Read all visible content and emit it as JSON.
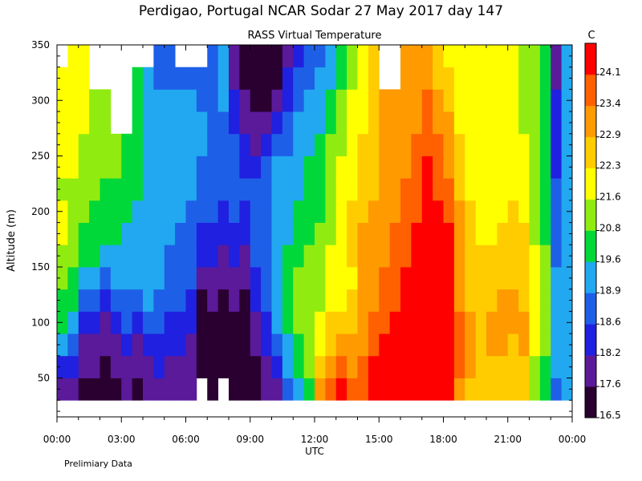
{
  "chart_data": {
    "type": "heatmap",
    "title": "Perdigao, Portugal  NCAR Sodar  27 May 2017  day 147",
    "subtitle": "RASS Virtual Temperature",
    "xlabel": "UTC",
    "ylabel": "Altitude (m)",
    "note": "Prelimiary Data",
    "x_ticks": [
      "00:00",
      "03:00",
      "06:00",
      "09:00",
      "12:00",
      "15:00",
      "18:00",
      "21:00",
      "00:00"
    ],
    "x_tick_hours": [
      0,
      3,
      6,
      9,
      12,
      15,
      18,
      21,
      24
    ],
    "xlim_hours": [
      0,
      24
    ],
    "y_ticks": [
      50,
      100,
      150,
      200,
      250,
      300,
      350
    ],
    "ylim": [
      15,
      350
    ],
    "colorbar": {
      "unit": "C",
      "levels": [
        16.5,
        17.6,
        18.2,
        18.6,
        18.9,
        19.6,
        20.8,
        21.6,
        22.3,
        22.9,
        23.4,
        24.1
      ],
      "colors": [
        "#2a0030",
        "#5a1a9a",
        "#2020e0",
        "#1e5fe8",
        "#21a8f0",
        "#00d83a",
        "#90ec10",
        "#ffff00",
        "#ffcc00",
        "#ff9a00",
        "#ff6000",
        "#ff0000"
      ]
    },
    "altitudes": [
      40,
      60,
      80,
      100,
      120,
      140,
      160,
      180,
      200,
      220,
      240,
      260,
      280,
      300,
      320,
      340
    ],
    "hour_centers": [
      0.25,
      0.75,
      1.25,
      1.75,
      2.25,
      2.75,
      3.25,
      3.75,
      4.25,
      4.75,
      5.25,
      5.75,
      6.25,
      6.75,
      7.25,
      7.75,
      8.25,
      8.75,
      9.25,
      9.75,
      10.25,
      10.75,
      11.25,
      11.75,
      12.25,
      12.75,
      13.25,
      13.75,
      14.25,
      14.75,
      15.25,
      15.75,
      16.25,
      16.75,
      17.25,
      17.75,
      18.25,
      18.75,
      19.25,
      19.75,
      20.25,
      20.75,
      21.25,
      21.75,
      22.25,
      22.75,
      23.25,
      23.75
    ],
    "columns": [
      [
        17.6,
        18.2,
        18.9,
        19.6,
        19.6,
        20.8,
        20.8,
        21.6,
        21.6,
        20.8,
        21.6,
        21.6,
        21.6,
        21.6,
        21.6,
        null
      ],
      [
        17.6,
        18.2,
        18.6,
        18.9,
        19.6,
        19.6,
        20.8,
        20.8,
        20.8,
        20.8,
        21.6,
        21.6,
        21.6,
        21.6,
        21.6,
        21.6
      ],
      [
        16.5,
        17.6,
        17.6,
        18.2,
        18.6,
        18.9,
        19.6,
        19.6,
        20.8,
        20.8,
        20.8,
        20.8,
        21.6,
        21.6,
        21.6,
        21.6
      ],
      [
        16.5,
        17.6,
        17.6,
        18.2,
        18.6,
        18.9,
        19.6,
        19.6,
        19.6,
        20.8,
        20.8,
        20.8,
        20.8,
        20.8,
        null,
        null
      ],
      [
        16.5,
        16.5,
        17.6,
        17.6,
        18.2,
        18.6,
        18.9,
        19.6,
        19.6,
        19.6,
        20.8,
        20.8,
        20.8,
        20.8,
        null,
        null
      ],
      [
        16.5,
        17.6,
        17.6,
        18.2,
        18.6,
        18.9,
        18.9,
        19.6,
        19.6,
        19.6,
        20.8,
        20.8,
        null,
        null,
        null,
        null
      ],
      [
        17.6,
        17.6,
        18.2,
        18.6,
        18.6,
        18.9,
        18.9,
        18.9,
        19.6,
        19.6,
        19.6,
        19.6,
        null,
        null,
        null,
        null
      ],
      [
        16.5,
        17.6,
        17.6,
        18.2,
        18.6,
        18.9,
        18.9,
        18.9,
        18.9,
        19.6,
        19.6,
        19.6,
        19.6,
        19.6,
        19.6,
        null
      ],
      [
        17.6,
        17.6,
        18.2,
        18.6,
        18.9,
        18.9,
        18.9,
        18.9,
        18.9,
        18.9,
        18.9,
        18.9,
        18.9,
        18.9,
        18.9,
        null
      ],
      [
        17.6,
        18.2,
        18.2,
        18.6,
        18.6,
        18.9,
        18.9,
        18.9,
        18.9,
        18.9,
        18.9,
        18.9,
        18.9,
        18.9,
        18.6,
        18.6
      ],
      [
        17.6,
        17.6,
        18.2,
        18.2,
        18.6,
        18.6,
        18.6,
        18.9,
        18.9,
        18.9,
        18.9,
        18.9,
        18.9,
        18.9,
        18.6,
        18.6
      ],
      [
        17.6,
        17.6,
        18.2,
        18.2,
        18.6,
        18.6,
        18.6,
        18.6,
        18.9,
        18.9,
        18.9,
        18.9,
        18.9,
        18.9,
        18.6,
        null
      ],
      [
        17.6,
        17.6,
        17.6,
        18.2,
        18.2,
        18.6,
        18.6,
        18.6,
        18.6,
        18.9,
        18.9,
        18.9,
        18.9,
        18.9,
        18.6,
        null
      ],
      [
        null,
        16.5,
        16.5,
        16.5,
        16.5,
        17.6,
        18.2,
        18.2,
        18.6,
        18.6,
        18.6,
        18.9,
        18.9,
        18.6,
        18.6,
        null
      ],
      [
        16.5,
        16.5,
        16.5,
        16.5,
        17.6,
        17.6,
        18.2,
        18.2,
        18.6,
        18.6,
        18.6,
        18.6,
        18.6,
        18.6,
        18.6,
        18.6
      ],
      [
        null,
        16.5,
        16.5,
        16.5,
        16.5,
        17.6,
        17.6,
        18.2,
        18.2,
        18.6,
        18.6,
        18.6,
        18.6,
        18.9,
        18.9,
        18.9
      ],
      [
        16.5,
        16.5,
        16.5,
        16.5,
        17.6,
        17.6,
        18.2,
        18.2,
        18.6,
        18.6,
        18.6,
        18.6,
        18.2,
        18.2,
        17.6,
        17.6
      ],
      [
        16.5,
        16.5,
        16.5,
        16.5,
        16.5,
        17.6,
        17.6,
        18.2,
        18.2,
        18.6,
        18.2,
        18.2,
        17.6,
        17.6,
        16.5,
        16.5
      ],
      [
        16.5,
        16.5,
        17.6,
        17.6,
        18.2,
        18.2,
        18.6,
        18.6,
        18.6,
        18.6,
        18.2,
        17.6,
        17.6,
        16.5,
        16.5,
        16.5
      ],
      [
        17.6,
        17.6,
        18.2,
        18.2,
        18.6,
        18.6,
        18.6,
        18.6,
        18.6,
        18.6,
        18.6,
        18.2,
        17.6,
        16.5,
        16.5,
        16.5
      ],
      [
        17.6,
        18.2,
        18.6,
        18.9,
        18.9,
        18.9,
        18.9,
        18.9,
        18.9,
        18.9,
        18.9,
        18.6,
        18.2,
        17.6,
        16.5,
        16.5
      ],
      [
        18.6,
        18.9,
        18.9,
        19.6,
        19.6,
        19.6,
        19.6,
        18.9,
        18.9,
        18.9,
        18.9,
        18.6,
        18.6,
        18.2,
        18.2,
        17.6
      ],
      [
        18.9,
        19.6,
        19.6,
        20.8,
        20.8,
        20.8,
        19.6,
        19.6,
        19.6,
        18.9,
        18.9,
        18.9,
        18.9,
        18.6,
        18.6,
        18.2
      ],
      [
        19.6,
        20.8,
        20.8,
        20.8,
        20.8,
        20.8,
        20.8,
        19.6,
        19.6,
        19.6,
        19.6,
        18.9,
        18.9,
        18.9,
        18.6,
        18.6
      ],
      [
        22.9,
        22.3,
        21.6,
        21.6,
        20.8,
        20.8,
        20.8,
        20.8,
        19.6,
        19.6,
        19.6,
        19.6,
        18.9,
        18.9,
        18.9,
        18.6
      ],
      [
        23.4,
        22.9,
        22.3,
        22.3,
        21.6,
        21.6,
        21.6,
        20.8,
        20.8,
        20.8,
        20.8,
        20.8,
        19.6,
        19.6,
        18.9,
        18.9
      ],
      [
        24.1,
        23.4,
        22.9,
        22.3,
        21.6,
        21.6,
        21.6,
        21.6,
        21.6,
        21.6,
        21.6,
        20.8,
        20.8,
        20.8,
        19.6,
        19.6
      ],
      [
        23.4,
        22.9,
        22.9,
        22.3,
        22.3,
        21.6,
        22.3,
        22.3,
        22.3,
        21.6,
        21.6,
        21.6,
        21.6,
        21.6,
        20.8,
        20.8
      ],
      [
        23.4,
        23.4,
        22.9,
        22.9,
        22.9,
        22.9,
        22.9,
        22.9,
        22.3,
        22.3,
        22.3,
        22.3,
        21.6,
        21.6,
        21.6,
        21.6
      ],
      [
        24.1,
        24.1,
        23.4,
        23.4,
        22.9,
        22.9,
        22.9,
        22.9,
        22.9,
        22.3,
        22.3,
        22.3,
        22.3,
        22.3,
        22.3,
        22.3
      ],
      [
        24.1,
        24.1,
        24.1,
        23.4,
        23.4,
        23.4,
        22.9,
        22.9,
        22.9,
        22.9,
        22.9,
        22.9,
        22.9,
        22.9,
        null,
        null
      ],
      [
        24.1,
        24.1,
        24.1,
        24.1,
        23.4,
        23.4,
        23.4,
        23.4,
        22.9,
        22.9,
        22.9,
        22.9,
        22.9,
        22.9,
        null,
        null
      ],
      [
        24.1,
        24.1,
        24.1,
        24.1,
        24.1,
        24.1,
        23.4,
        23.4,
        23.4,
        23.4,
        22.9,
        22.9,
        22.9,
        22.9,
        22.9,
        22.9
      ],
      [
        24.1,
        24.1,
        24.1,
        24.1,
        24.1,
        24.1,
        24.1,
        24.1,
        23.4,
        23.4,
        23.4,
        23.4,
        22.9,
        22.9,
        22.9,
        22.9
      ],
      [
        24.1,
        24.1,
        24.1,
        24.1,
        24.1,
        24.1,
        24.1,
        24.1,
        24.1,
        24.1,
        24.1,
        23.4,
        23.4,
        23.4,
        22.9,
        22.9
      ],
      [
        24.1,
        24.1,
        24.1,
        24.1,
        24.1,
        24.1,
        24.1,
        24.1,
        24.1,
        23.4,
        23.4,
        23.4,
        22.9,
        22.9,
        22.3,
        22.3
      ],
      [
        24.1,
        24.1,
        24.1,
        24.1,
        24.1,
        24.1,
        24.1,
        24.1,
        23.4,
        23.4,
        22.9,
        22.9,
        22.9,
        22.3,
        22.3,
        21.6
      ],
      [
        22.9,
        23.4,
        23.4,
        23.4,
        22.9,
        22.9,
        22.9,
        22.9,
        22.9,
        22.3,
        22.3,
        22.3,
        21.6,
        21.6,
        21.6,
        21.6
      ],
      [
        22.3,
        22.9,
        22.9,
        22.9,
        22.3,
        22.3,
        22.3,
        22.3,
        22.3,
        21.6,
        21.6,
        21.6,
        21.6,
        21.6,
        21.6,
        21.6
      ],
      [
        22.3,
        22.3,
        22.3,
        22.3,
        22.3,
        22.3,
        22.3,
        21.6,
        21.6,
        21.6,
        21.6,
        21.6,
        21.6,
        21.6,
        21.6,
        21.6
      ],
      [
        22.3,
        22.3,
        22.9,
        22.9,
        22.3,
        22.3,
        22.3,
        21.6,
        21.6,
        21.6,
        21.6,
        21.6,
        21.6,
        21.6,
        21.6,
        21.6
      ],
      [
        22.3,
        22.3,
        22.9,
        22.9,
        22.9,
        22.3,
        22.3,
        22.3,
        21.6,
        21.6,
        21.6,
        21.6,
        21.6,
        21.6,
        21.6,
        21.6
      ],
      [
        22.3,
        22.3,
        22.3,
        22.9,
        22.9,
        22.3,
        22.3,
        22.3,
        22.3,
        21.6,
        21.6,
        21.6,
        21.6,
        21.6,
        21.6,
        21.6
      ],
      [
        22.3,
        22.3,
        22.9,
        22.9,
        22.3,
        22.3,
        22.3,
        22.3,
        21.6,
        21.6,
        21.6,
        21.6,
        20.8,
        20.8,
        20.8,
        20.8
      ],
      [
        20.8,
        20.8,
        21.6,
        21.6,
        21.6,
        21.6,
        21.6,
        20.8,
        20.8,
        20.8,
        20.8,
        20.8,
        20.8,
        20.8,
        20.8,
        20.8
      ],
      [
        19.6,
        19.6,
        20.8,
        20.8,
        20.8,
        20.8,
        20.8,
        19.6,
        19.6,
        19.6,
        19.6,
        19.6,
        19.6,
        19.6,
        19.6,
        19.6
      ],
      [
        18.6,
        18.9,
        18.9,
        18.9,
        18.9,
        18.9,
        18.6,
        18.6,
        18.6,
        18.6,
        18.2,
        18.2,
        18.2,
        18.2,
        17.6,
        17.6
      ],
      [
        18.9,
        18.9,
        18.9,
        18.9,
        18.9,
        18.9,
        18.9,
        18.9,
        18.9,
        18.9,
        18.9,
        18.9,
        18.9,
        18.9,
        18.9,
        18.9
      ]
    ]
  }
}
